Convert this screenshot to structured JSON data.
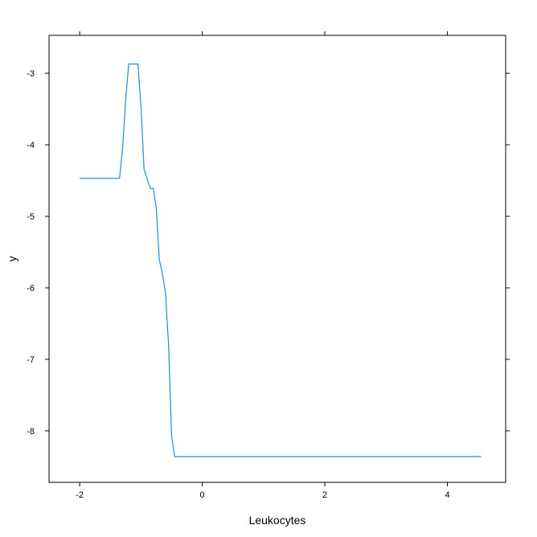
{
  "chart_data": {
    "type": "line",
    "xlabel": "Leukocytes",
    "ylabel": "y",
    "xlim": [
      -2.5,
      4.95
    ],
    "ylim": [
      -8.72,
      -2.47
    ],
    "x_ticks": [
      -2,
      0,
      2,
      4
    ],
    "y_ticks": [
      -3,
      -4,
      -5,
      -6,
      -7,
      -8
    ],
    "grid": false,
    "line_color": "#1f8fd0",
    "series": [
      {
        "x": [
          -2.0,
          -1.35,
          -1.3,
          -1.25,
          -1.2,
          -1.05,
          -1.0,
          -0.95,
          -0.85,
          -0.8,
          -0.75,
          -0.7,
          -0.65,
          -0.6,
          -0.55,
          -0.5,
          -0.45,
          -0.4,
          -0.35,
          0.0,
          1.0,
          2.0,
          3.0,
          4.0,
          4.55
        ],
        "y": [
          -4.47,
          -4.47,
          -4.05,
          -3.38,
          -2.87,
          -2.87,
          -3.47,
          -4.34,
          -4.61,
          -4.61,
          -4.88,
          -5.61,
          -5.8,
          -6.07,
          -6.8,
          -8.07,
          -8.36,
          -8.36,
          -8.36,
          -8.36,
          -8.36,
          -8.36,
          -8.36,
          -8.36,
          -8.36
        ]
      }
    ]
  }
}
